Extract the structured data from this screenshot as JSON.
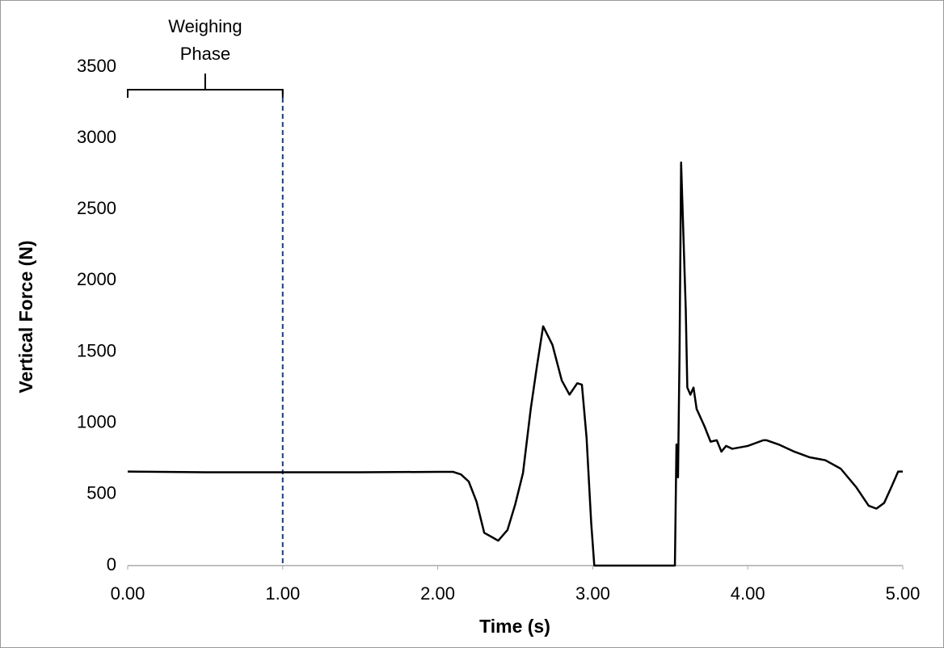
{
  "chart_data": {
    "type": "line",
    "x_label": "Time (s)",
    "y_label": "Vertical Force (N)",
    "series": [
      {
        "name": "Vertical Force",
        "color": "#000000",
        "x": [
          0,
          0.5,
          1.0,
          1.5,
          2.0,
          2.1,
          2.15,
          2.2,
          2.25,
          2.3,
          2.35,
          2.39,
          2.45,
          2.5,
          2.55,
          2.6,
          2.64,
          2.68,
          2.74,
          2.8,
          2.85,
          2.9,
          2.93,
          2.96,
          2.99,
          3.01,
          3.2,
          3.4,
          3.53,
          3.54,
          3.55,
          3.56,
          3.57,
          3.6,
          3.61,
          3.63,
          3.65,
          3.67,
          3.72,
          3.76,
          3.8,
          3.83,
          3.86,
          3.9,
          4.0,
          4.1,
          4.12,
          4.2,
          4.3,
          4.4,
          4.5,
          4.6,
          4.7,
          4.78,
          4.83,
          4.88,
          4.93,
          4.97,
          5.0
        ],
        "values": [
          660,
          655,
          655,
          655,
          658,
          658,
          640,
          590,
          450,
          230,
          200,
          175,
          250,
          430,
          650,
          1100,
          1400,
          1680,
          1550,
          1300,
          1200,
          1280,
          1270,
          900,
          300,
          0,
          0,
          0,
          0,
          850,
          620,
          1500,
          2830,
          1800,
          1250,
          1200,
          1250,
          1100,
          980,
          870,
          880,
          800,
          840,
          820,
          840,
          880,
          880,
          850,
          800,
          760,
          740,
          680,
          550,
          420,
          400,
          440,
          560,
          660,
          660
        ]
      }
    ],
    "xlim": [
      0,
      5
    ],
    "ylim": [
      0,
      3500
    ],
    "xticks": [
      {
        "value": 0,
        "label": "0.00"
      },
      {
        "value": 1,
        "label": "1.00"
      },
      {
        "value": 2,
        "label": "2.00"
      },
      {
        "value": 3,
        "label": "3.00"
      },
      {
        "value": 4,
        "label": "4.00"
      },
      {
        "value": 5,
        "label": "5.00"
      }
    ],
    "yticks": [
      0,
      500,
      1000,
      1500,
      2000,
      2500,
      3000,
      3500
    ],
    "weighing_phase": {
      "label_lines": [
        "Weighing",
        "Phase"
      ],
      "x": [
        0,
        1
      ],
      "line_color": "#1f3a7a"
    }
  }
}
